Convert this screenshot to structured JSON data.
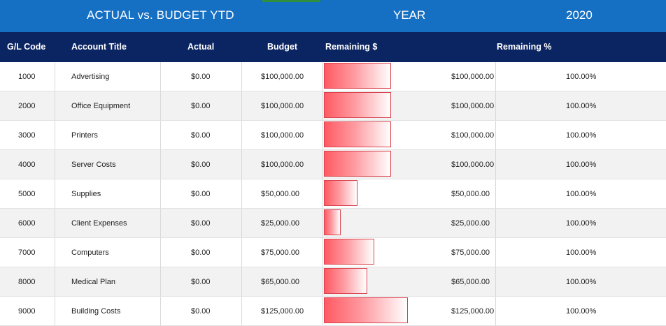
{
  "topbar": {
    "title": "ACTUAL vs. BUDGET YTD",
    "year_label": "YEAR",
    "year_value": "2020"
  },
  "columns": {
    "code": "G/L Code",
    "title": "Account Title",
    "actual": "Actual",
    "budget": "Budget",
    "remaining_bar": "Remaining $",
    "remaining_pct": "Remaining %"
  },
  "colors": {
    "topbar": "#1570c3",
    "header": "#0b2462",
    "bar_fill": "#ff5a63",
    "bar_border": "#d9434f",
    "row_alt": "#f2f2f2"
  },
  "rows": [
    {
      "code": "1000",
      "title": "Advertising",
      "actual": "$0.00",
      "budget": "$100,000.00",
      "remaining": "$100,000.00",
      "pct": "100.00%",
      "remaining_value": 100000
    },
    {
      "code": "2000",
      "title": "Office Equipment",
      "actual": "$0.00",
      "budget": "$100,000.00",
      "remaining": "$100,000.00",
      "pct": "100.00%",
      "remaining_value": 100000
    },
    {
      "code": "3000",
      "title": "Printers",
      "actual": "$0.00",
      "budget": "$100,000.00",
      "remaining": "$100,000.00",
      "pct": "100.00%",
      "remaining_value": 100000
    },
    {
      "code": "4000",
      "title": "Server Costs",
      "actual": "$0.00",
      "budget": "$100,000.00",
      "remaining": "$100,000.00",
      "pct": "100.00%",
      "remaining_value": 100000
    },
    {
      "code": "5000",
      "title": "Supplies",
      "actual": "$0.00",
      "budget": "$50,000.00",
      "remaining": "$50,000.00",
      "pct": "100.00%",
      "remaining_value": 50000
    },
    {
      "code": "6000",
      "title": "Client Expenses",
      "actual": "$0.00",
      "budget": "$25,000.00",
      "remaining": "$25,000.00",
      "pct": "100.00%",
      "remaining_value": 25000
    },
    {
      "code": "7000",
      "title": "Computers",
      "actual": "$0.00",
      "budget": "$75,000.00",
      "remaining": "$75,000.00",
      "pct": "100.00%",
      "remaining_value": 75000
    },
    {
      "code": "8000",
      "title": "Medical Plan",
      "actual": "$0.00",
      "budget": "$65,000.00",
      "remaining": "$65,000.00",
      "pct": "100.00%",
      "remaining_value": 65000
    },
    {
      "code": "9000",
      "title": "Building Costs",
      "actual": "$0.00",
      "budget": "$125,000.00",
      "remaining": "$125,000.00",
      "pct": "100.00%",
      "remaining_value": 125000
    }
  ]
}
